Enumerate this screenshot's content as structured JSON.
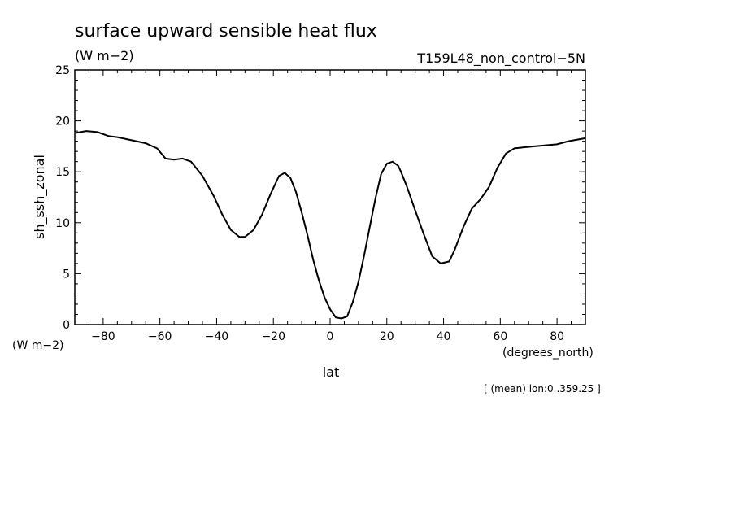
{
  "chart_data": {
    "type": "line",
    "title": "surface upward sensible heat flux",
    "units": "(W m−2)",
    "run_label": "T159L48_non_control−5N",
    "ylabel": "sh_ssh_zonal",
    "y_units": "(W m−2)",
    "xlabel": "lat",
    "x_units": "(degrees_north)",
    "note": "[ (mean) lon:0..359.25 ]",
    "xlim": [
      -90,
      90
    ],
    "ylim": [
      0,
      25
    ],
    "x_ticks": [
      -80,
      -60,
      -40,
      -20,
      0,
      20,
      40,
      60,
      80
    ],
    "y_ticks": [
      0,
      5,
      10,
      15,
      20,
      25
    ],
    "grid": false,
    "series": [
      {
        "x": [
          -90,
          -86,
          -82,
          -78,
          -75,
          -70,
          -65,
          -61,
          -58,
          -55,
          -52,
          -49,
          -45,
          -41,
          -38,
          -35,
          -32,
          -30,
          -27,
          -24,
          -21,
          -18,
          -16,
          -14,
          -12,
          -10,
          -8,
          -6,
          -4,
          -2,
          0,
          2,
          4,
          6,
          8,
          10,
          12,
          14,
          16,
          18,
          20,
          22,
          24,
          25,
          27,
          30,
          33,
          36,
          39,
          42,
          44,
          47,
          50,
          53,
          56,
          59,
          62,
          65,
          68,
          72,
          76,
          80,
          84,
          88,
          90
        ],
        "y": [
          18.8,
          19.0,
          18.9,
          18.5,
          18.4,
          18.1,
          17.8,
          17.3,
          16.3,
          16.2,
          16.3,
          16.0,
          14.6,
          12.6,
          10.8,
          9.3,
          8.6,
          8.6,
          9.3,
          10.8,
          12.8,
          14.6,
          14.9,
          14.4,
          13.0,
          11.0,
          8.8,
          6.4,
          4.4,
          2.7,
          1.5,
          0.7,
          0.6,
          0.8,
          2.2,
          4.2,
          6.8,
          9.6,
          12.4,
          14.8,
          15.8,
          16.0,
          15.6,
          15.0,
          13.6,
          11.2,
          8.9,
          6.7,
          6.0,
          6.2,
          7.4,
          9.6,
          11.4,
          12.3,
          13.5,
          15.4,
          16.8,
          17.3,
          17.4,
          17.5,
          17.6,
          17.7,
          18.0,
          18.2,
          18.3
        ]
      }
    ]
  }
}
